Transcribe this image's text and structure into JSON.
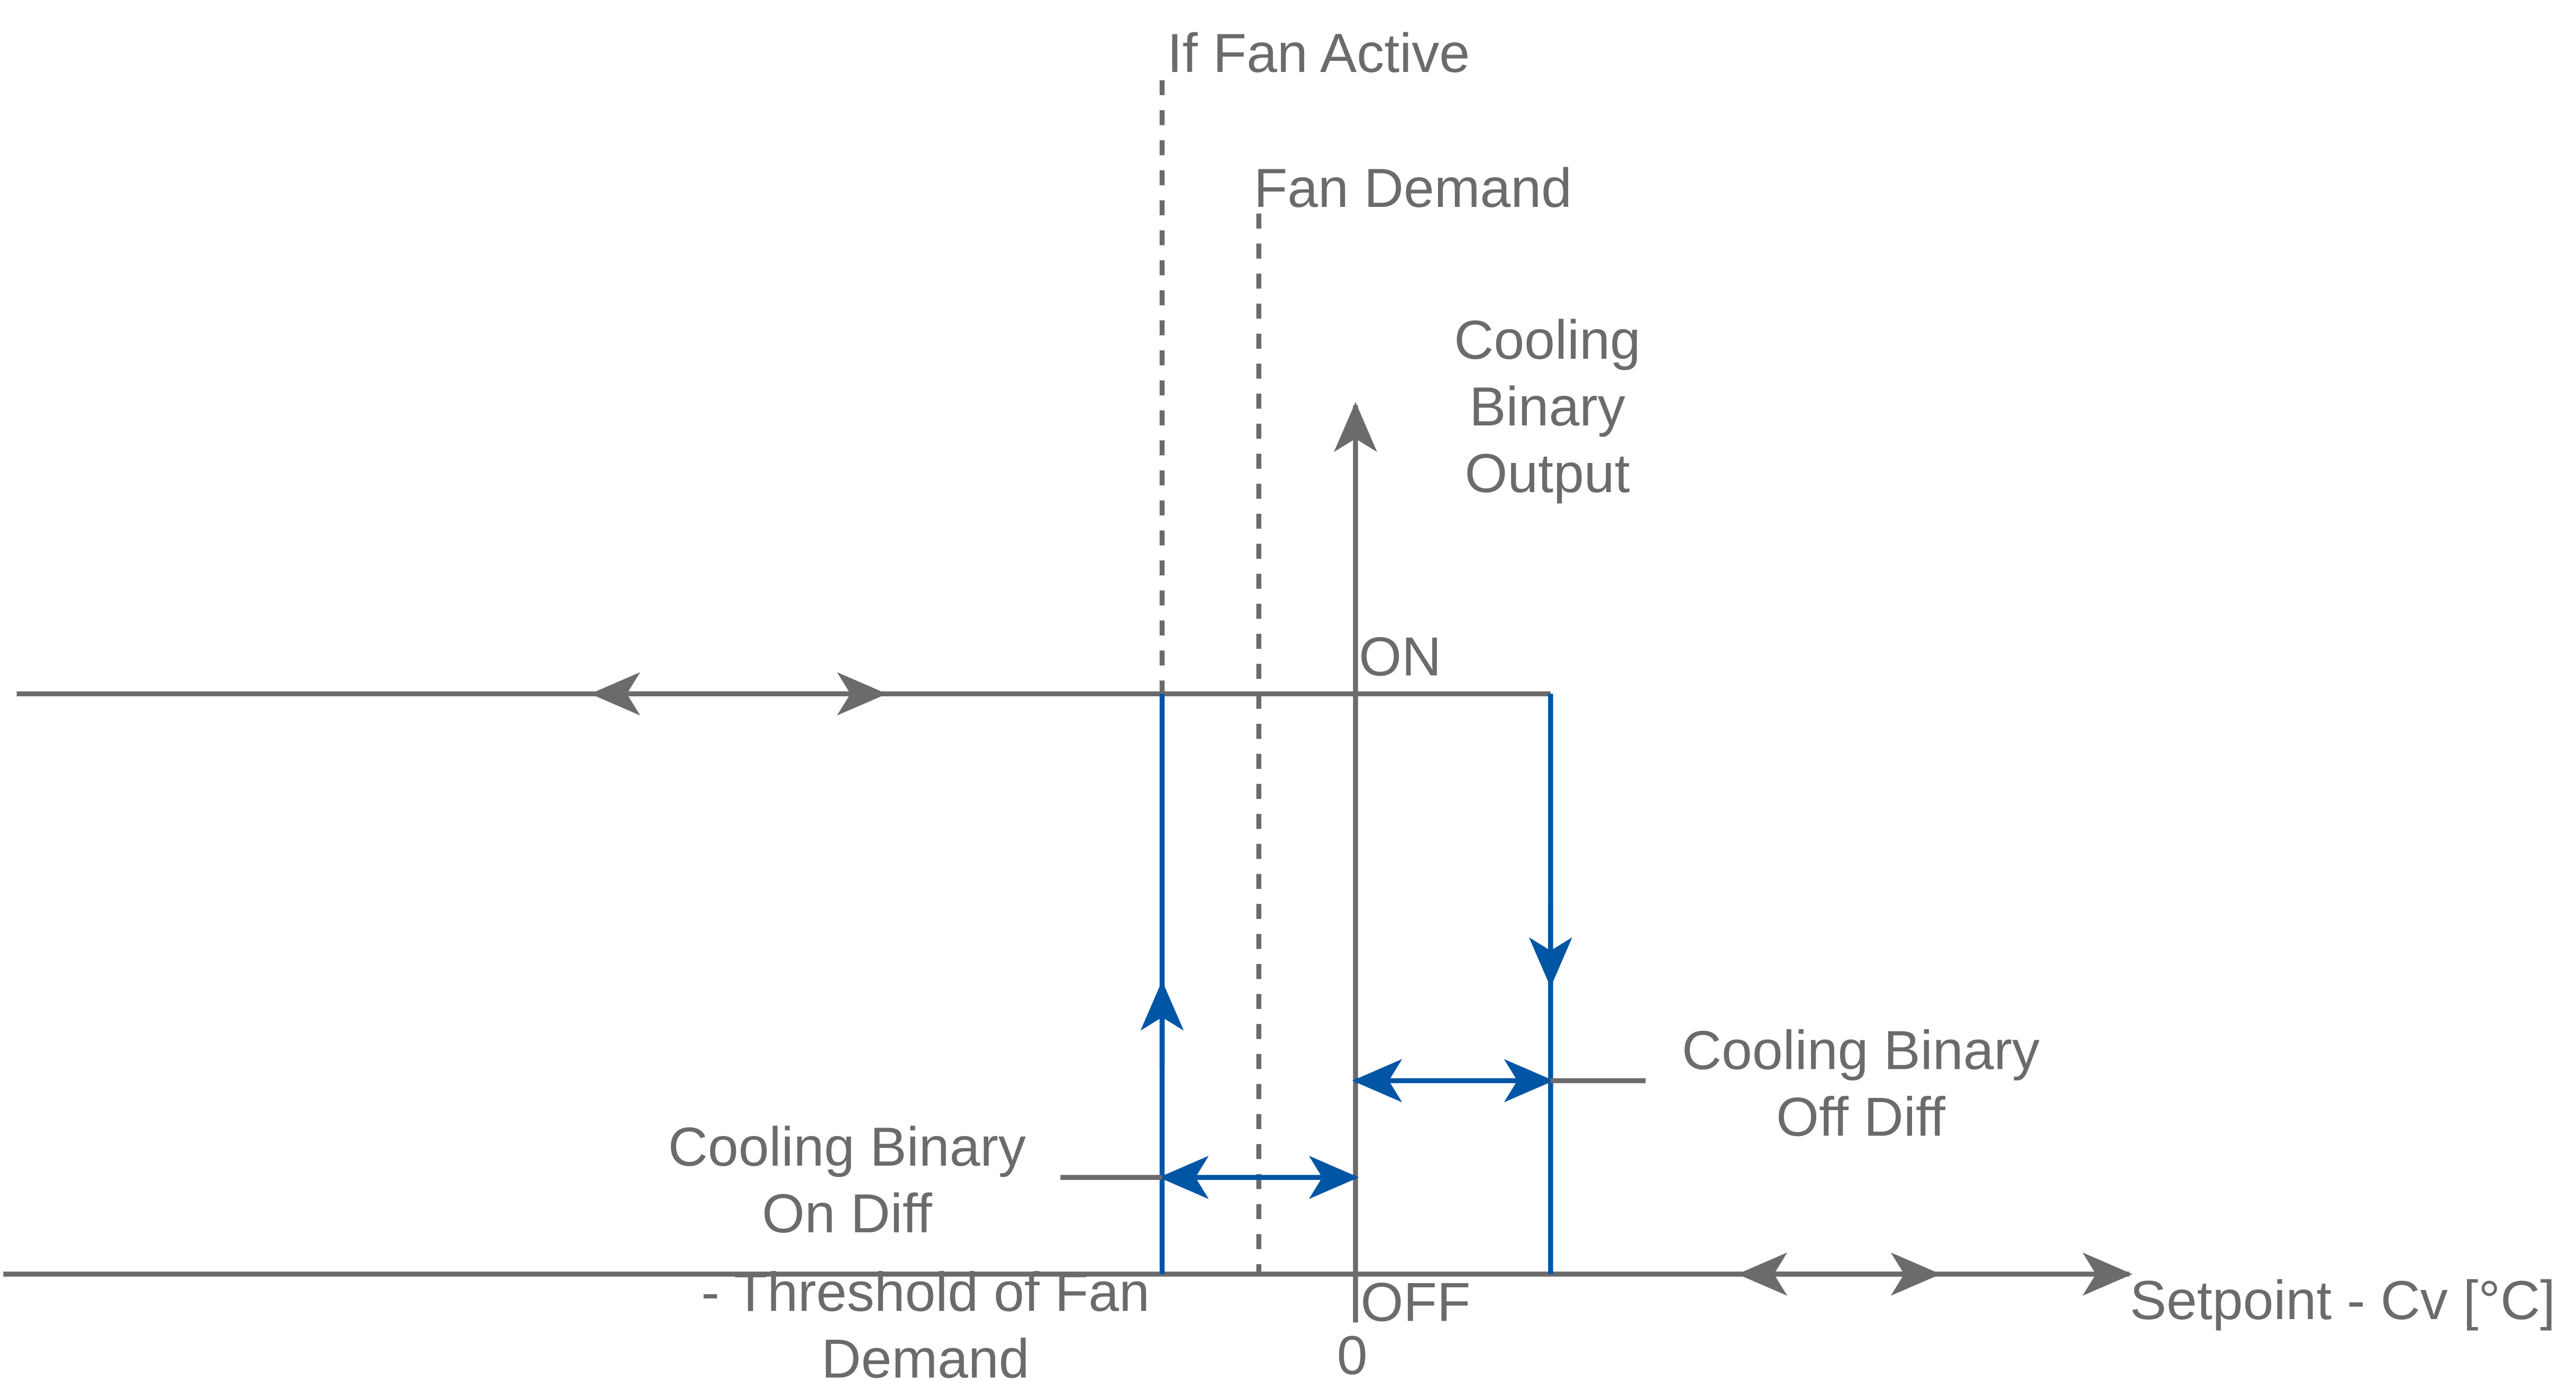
{
  "colors": {
    "axis": "#6b6b6b",
    "hysteresis": "#0055a5"
  },
  "labels": {
    "if_fan_active": "If Fan Active",
    "fan_demand": "Fan Demand",
    "y_axis": [
      "Cooling",
      "Binary",
      "Output"
    ],
    "on": "ON",
    "off": "OFF",
    "zero": "0",
    "off_diff": [
      "Cooling Binary",
      "Off Diff"
    ],
    "on_diff": [
      "Cooling Binary",
      "On Diff"
    ],
    "threshold": [
      "- Threshold of Fan",
      "Demand"
    ],
    "x_axis": "Setpoint - Cv [°C]"
  }
}
